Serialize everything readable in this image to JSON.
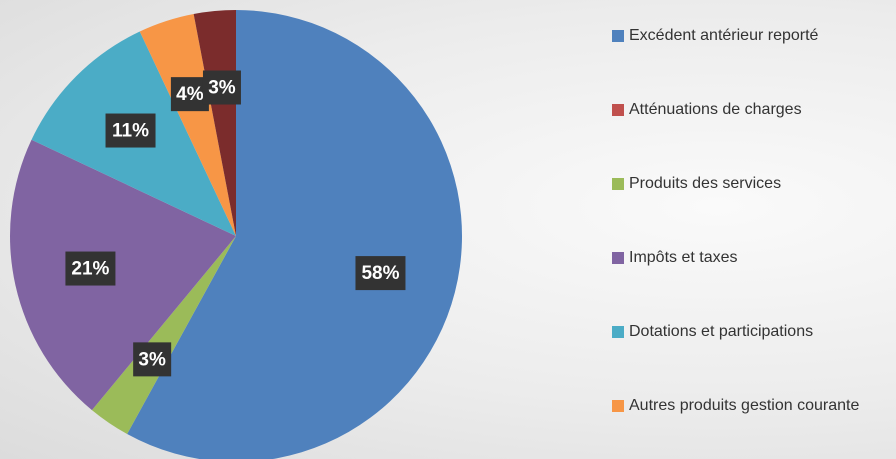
{
  "chart_data": {
    "type": "pie",
    "categories": [
      "Excédent antérieur reporté",
      "Atténuations de charges",
      "Produits des services",
      "Impôts et taxes",
      "Dotations et participations",
      "Autres produits gestion courante",
      null
    ],
    "values": [
      58,
      0,
      3,
      21,
      11,
      4,
      3
    ],
    "value_labels": [
      "58%",
      null,
      "3%",
      "21%",
      "11%",
      "4%",
      "3%"
    ],
    "colors": [
      "#4f81bd",
      "#c0504d",
      "#9bbb59",
      "#8064a2",
      "#4bacc6",
      "#f79646",
      "#7b2c2c"
    ]
  }
}
